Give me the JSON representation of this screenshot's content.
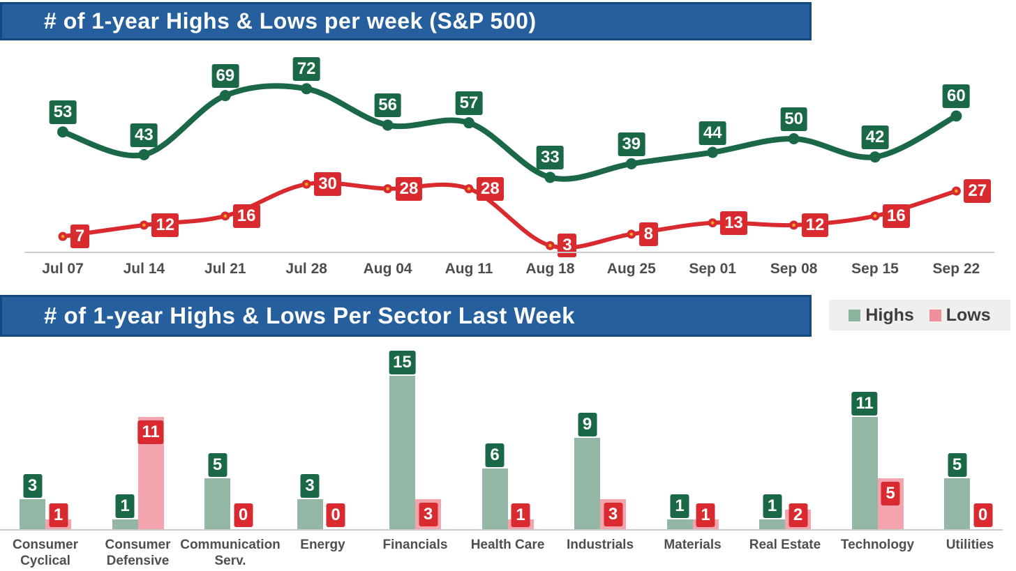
{
  "header": {
    "title": "# of 1-year Highs & Lows per week (S&P 500)"
  },
  "section2": {
    "title": "# of 1-year Highs & Lows Per Sector Last Week"
  },
  "legend": {
    "highs": {
      "label": "Highs",
      "color": "#8cb5a0"
    },
    "lows": {
      "label": "Lows",
      "color": "#ee8f99"
    }
  },
  "colors": {
    "title_bar_fill": "#265f9d",
    "title_bar_border": "#14497f",
    "highs_dark_green": "#1a6848",
    "lows_red": "#d92b2f",
    "marker_center_orange": "#f6a41f",
    "highs_bar_sage": "#93b7a4",
    "lows_bar_pink": "#f3a4ad",
    "axis_text": "#4d4d4d",
    "axis_line": "#cccccc",
    "legend_bg": "#efefef",
    "legend_text": "#3d3d3d"
  },
  "chart_data": [
    {
      "type": "line",
      "title": "# of 1-year Highs & Lows per week (S&P 500)",
      "x": [
        "Jul 07",
        "Jul 14",
        "Jul 21",
        "Jul 28",
        "Aug 04",
        "Aug 11",
        "Aug 18",
        "Aug 25",
        "Sep 01",
        "Sep 08",
        "Sep 15",
        "Sep 22"
      ],
      "series": [
        {
          "name": "Highs",
          "color": "#1a6848",
          "label_bg": "#1a6848",
          "values": [
            53,
            43,
            69,
            72,
            56,
            57,
            33,
            39,
            44,
            50,
            42,
            60
          ]
        },
        {
          "name": "Lows",
          "color": "#d92b2f",
          "label_bg": "#d92b2f",
          "values": [
            7,
            12,
            16,
            30,
            28,
            28,
            3,
            8,
            13,
            12,
            16,
            27
          ]
        }
      ],
      "ylim": [
        0,
        80
      ],
      "grid": false,
      "data_labels": "boxed",
      "legend_position": "none"
    },
    {
      "type": "bar",
      "title": "# of 1-year Highs & Lows Per Sector Last Week",
      "categories": [
        "Consumer Cyclical",
        "Consumer Defensive",
        "Communication Serv.",
        "Energy",
        "Financials",
        "Health Care",
        "Industrials",
        "Materials",
        "Real Estate",
        "Technology",
        "Utilities"
      ],
      "category_lines": [
        [
          "Consumer",
          "Cyclical"
        ],
        [
          "Consumer",
          "Defensive"
        ],
        [
          "Communication",
          "Serv."
        ],
        [
          "Energy"
        ],
        [
          "Financials"
        ],
        [
          "Health Care"
        ],
        [
          "Industrials"
        ],
        [
          "Materials"
        ],
        [
          "Real Estate"
        ],
        [
          "Technology"
        ],
        [
          "Utilities"
        ]
      ],
      "series": [
        {
          "name": "Highs",
          "color": "#93b7a4",
          "label_bg": "#1a6848",
          "values": [
            3,
            1,
            5,
            3,
            15,
            6,
            9,
            1,
            1,
            11,
            5
          ]
        },
        {
          "name": "Lows",
          "color": "#f3a4ad",
          "label_bg": "#d92b2f",
          "values": [
            1,
            11,
            0,
            0,
            3,
            1,
            3,
            1,
            2,
            5,
            0
          ]
        }
      ],
      "ylim": [
        0,
        16
      ],
      "grid": false,
      "data_labels": "boxed",
      "legend_position": "top-right"
    }
  ]
}
